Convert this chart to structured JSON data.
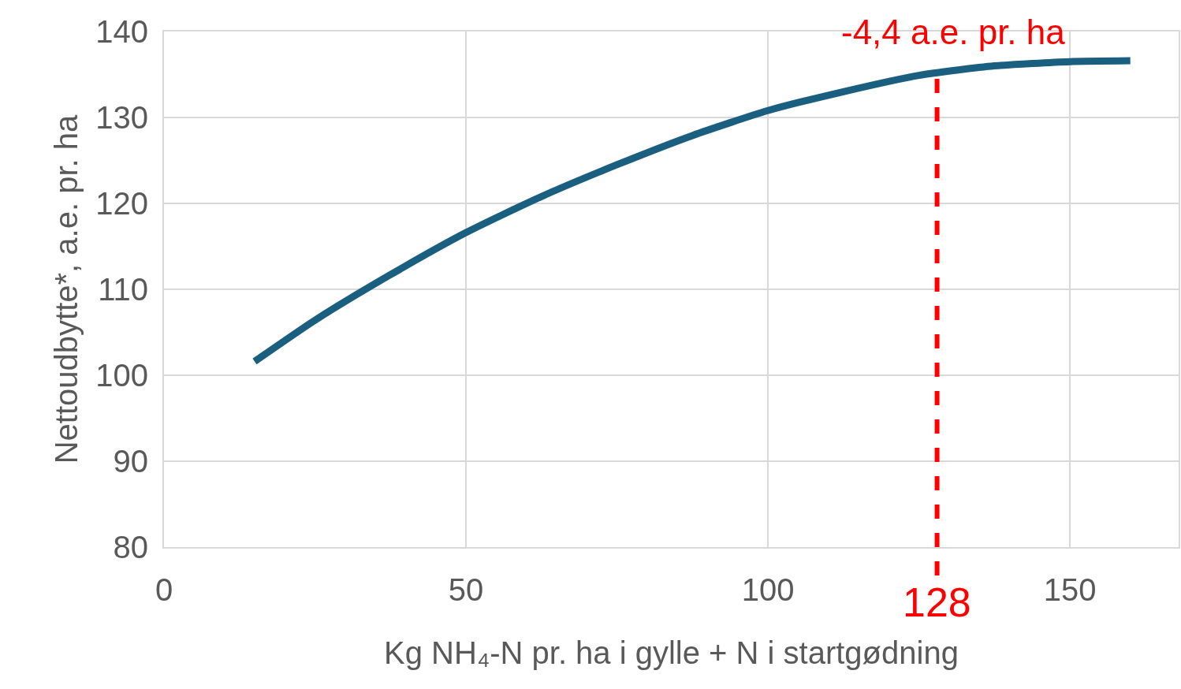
{
  "chart_data": {
    "type": "line",
    "xlabel": "Kg NH₄-N pr. ha i gylle + N i startgødning",
    "ylabel": "Nettoudbytte*, a.e. pr. ha",
    "x": [
      15,
      25,
      37.5,
      50,
      62.5,
      75,
      87.5,
      100,
      112.5,
      125,
      137.5,
      150,
      160
    ],
    "series": [
      {
        "color": "#1a5e80",
        "values": [
          101.6,
          106.4,
          111.7,
          116.6,
          120.8,
          124.5,
          127.9,
          130.8,
          133.0,
          134.9,
          136.0,
          136.5,
          136.6
        ]
      }
    ],
    "xlim": [
      0,
      168
    ],
    "xticks": [
      0,
      50,
      100,
      150
    ],
    "ylim": [
      80,
      140
    ],
    "yticks": [
      80,
      90,
      100,
      110,
      120,
      130,
      140
    ],
    "grid": true,
    "marker": "none",
    "line_style": "solid",
    "ref_lines": [
      {
        "axis": "x",
        "value": 128,
        "label": "128",
        "color": "#ff0000",
        "line_style": "dashed"
      }
    ],
    "annotations": [
      "-4,4 a.e. pr. ha"
    ]
  }
}
